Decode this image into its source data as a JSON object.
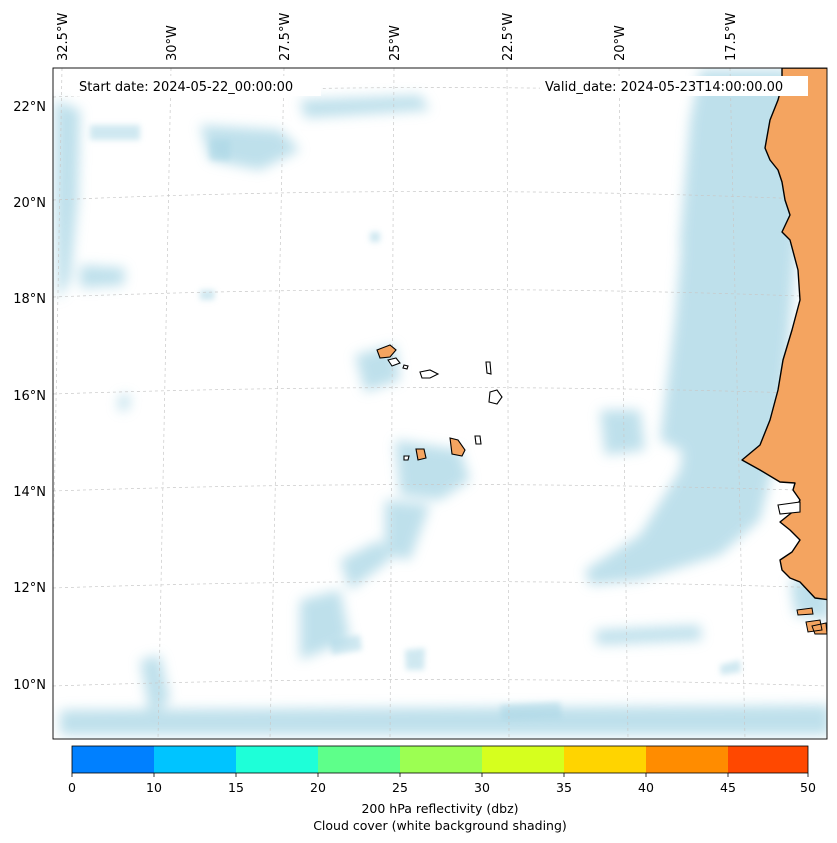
{
  "map": {
    "start_date_label": "Start date: 2024-05-22_00:00:00",
    "valid_date_label": "Valid_date: 2024-05-23T14:00:00.00",
    "lon_labels": [
      "32.5°W",
      "30°W",
      "27.5°W",
      "25°W",
      "22.5°W",
      "20°W",
      "17.5°W"
    ],
    "lat_labels": [
      "22°N",
      "20°N",
      "18°N",
      "16°N",
      "14°N",
      "12°N",
      "10°N"
    ],
    "colors": {
      "land": "#f4a460",
      "cloud": "#a9d6e5",
      "coast": "#000000",
      "grid": "#c8c8c8"
    }
  },
  "colorbar": {
    "ticks": [
      "0",
      "10",
      "15",
      "20",
      "25",
      "30",
      "35",
      "40",
      "45",
      "50"
    ],
    "colors": [
      "#0080ff",
      "#00c4ff",
      "#1effd8",
      "#5eff8a",
      "#9cff52",
      "#d6ff1e",
      "#ffd400",
      "#ff8c00",
      "#ff4800"
    ],
    "label_line1": "200 hPa reflectivity (dbz)",
    "label_line2": "Cloud cover (white background shading)"
  }
}
